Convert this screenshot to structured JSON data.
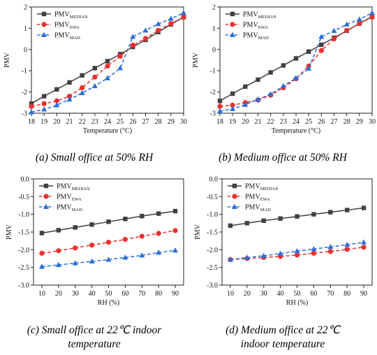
{
  "chart_data": [
    {
      "type": "line",
      "xlabel": "Temperature (°C)",
      "ylabel": "PMV",
      "xlim": [
        18,
        30
      ],
      "ylim": [
        -3,
        2
      ],
      "xticks": [
        18,
        19,
        20,
        21,
        22,
        23,
        24,
        25,
        26,
        27,
        28,
        29,
        30
      ],
      "yticks": [
        -3,
        -2,
        -1,
        0,
        1,
        2
      ],
      "legend": "top-left",
      "x": [
        18,
        19,
        20,
        21,
        22,
        23,
        24,
        25,
        26,
        27,
        28,
        29,
        30
      ],
      "series": [
        {
          "name": "PMV",
          "sub": "MEDIAN",
          "color": "#404040",
          "marker": "square",
          "dash": "solid",
          "values": [
            -2.55,
            -2.2,
            -1.88,
            -1.55,
            -1.22,
            -0.88,
            -0.55,
            -0.22,
            0.12,
            0.45,
            0.82,
            1.18,
            1.52
          ]
        },
        {
          "name": "PMV",
          "sub": "EWA",
          "color": "#e8312f",
          "marker": "circle",
          "dash": "dashed",
          "values": [
            -2.68,
            -2.55,
            -2.42,
            -2.2,
            -1.8,
            -1.3,
            -0.78,
            -0.32,
            0.2,
            0.52,
            0.9,
            1.22,
            1.52
          ]
        },
        {
          "name": "PMV",
          "sub": "MAD",
          "color": "#2a6ed8",
          "marker": "triangle",
          "dash": "dashed",
          "values": [
            -2.95,
            -2.82,
            -2.62,
            -2.35,
            -2.05,
            -1.72,
            -1.35,
            -0.88,
            0.6,
            0.9,
            1.2,
            1.45,
            1.72
          ]
        }
      ]
    },
    {
      "type": "line",
      "xlabel": "Temperature (°C)",
      "ylabel": "PMV",
      "xlim": [
        18,
        30
      ],
      "ylim": [
        -3,
        2
      ],
      "xticks": [
        18,
        19,
        20,
        21,
        22,
        23,
        24,
        25,
        26,
        27,
        28,
        29,
        30
      ],
      "yticks": [
        -3,
        -2,
        -1,
        0,
        1,
        2
      ],
      "legend": "top-left",
      "x": [
        18,
        19,
        20,
        21,
        22,
        23,
        24,
        25,
        26,
        27,
        28,
        29,
        30
      ],
      "series": [
        {
          "name": "PMV",
          "sub": "MEDIAN",
          "color": "#404040",
          "marker": "square",
          "dash": "solid",
          "values": [
            -2.42,
            -2.08,
            -1.75,
            -1.42,
            -1.08,
            -0.75,
            -0.42,
            -0.1,
            0.22,
            0.55,
            0.88,
            1.22,
            1.55
          ]
        },
        {
          "name": "PMV",
          "sub": "EWA",
          "color": "#e8312f",
          "marker": "circle",
          "dash": "dashed",
          "values": [
            -2.68,
            -2.62,
            -2.5,
            -2.38,
            -2.15,
            -1.8,
            -1.38,
            -0.78,
            -0.05,
            0.5,
            0.9,
            1.22,
            1.52
          ]
        },
        {
          "name": "PMV",
          "sub": "MAD",
          "color": "#2a6ed8",
          "marker": "triangle",
          "dash": "dashed",
          "values": [
            -2.9,
            -2.8,
            -2.6,
            -2.35,
            -2.1,
            -1.72,
            -1.35,
            -0.9,
            0.6,
            0.88,
            1.18,
            1.42,
            1.72
          ]
        }
      ]
    },
    {
      "type": "line",
      "xlabel": "RH (%)",
      "ylabel": "PMV",
      "xlim": [
        5,
        95
      ],
      "ylim": [
        -3,
        0
      ],
      "xticks": [
        10,
        20,
        30,
        40,
        50,
        60,
        70,
        80,
        90
      ],
      "yticks": [
        "-3.0",
        "-2.5",
        "-2.0",
        "-1.5",
        "-1.0",
        "-0.5",
        "0.0"
      ],
      "legend": "top-left",
      "x": [
        10,
        20,
        30,
        40,
        50,
        60,
        70,
        80,
        90
      ],
      "series": [
        {
          "name": "PMV",
          "sub": "MEDIAN",
          "color": "#404040",
          "marker": "square",
          "dash": "solid",
          "values": [
            -1.53,
            -1.45,
            -1.37,
            -1.29,
            -1.21,
            -1.13,
            -1.05,
            -0.98,
            -0.91
          ]
        },
        {
          "name": "PMV",
          "sub": "EWA",
          "color": "#e8312f",
          "marker": "circle",
          "dash": "dashed",
          "values": [
            -2.1,
            -2.03,
            -1.95,
            -1.87,
            -1.79,
            -1.71,
            -1.62,
            -1.54,
            -1.46
          ]
        },
        {
          "name": "PMV",
          "sub": "MAD",
          "color": "#2a6ed8",
          "marker": "triangle",
          "dash": "dashed",
          "values": [
            -2.48,
            -2.43,
            -2.38,
            -2.33,
            -2.28,
            -2.22,
            -2.16,
            -2.08,
            -2.02
          ]
        }
      ]
    },
    {
      "type": "line",
      "xlabel": "RH (%)",
      "ylabel": "PMV",
      "xlim": [
        5,
        95
      ],
      "ylim": [
        -3,
        0
      ],
      "xticks": [
        10,
        20,
        30,
        40,
        50,
        60,
        70,
        80,
        90
      ],
      "yticks": [
        "-3.0",
        "-2.5",
        "-2.0",
        "-1.5",
        "-1.0",
        "-0.5",
        "0.0"
      ],
      "legend": "top-left",
      "x": [
        10,
        20,
        30,
        40,
        50,
        60,
        70,
        80,
        90
      ],
      "series": [
        {
          "name": "PMV",
          "sub": "MEDIAN",
          "color": "#404040",
          "marker": "square",
          "dash": "solid",
          "values": [
            -1.32,
            -1.25,
            -1.18,
            -1.12,
            -1.06,
            -1.0,
            -0.94,
            -0.88,
            -0.82
          ]
        },
        {
          "name": "PMV",
          "sub": "EWA",
          "color": "#e8312f",
          "marker": "circle",
          "dash": "dashed",
          "values": [
            -2.28,
            -2.25,
            -2.22,
            -2.19,
            -2.15,
            -2.1,
            -2.05,
            -1.99,
            -1.93
          ]
        },
        {
          "name": "PMV",
          "sub": "MAD",
          "color": "#2a6ed8",
          "marker": "triangle",
          "dash": "dashed",
          "values": [
            -2.28,
            -2.22,
            -2.17,
            -2.11,
            -2.04,
            -1.98,
            -1.92,
            -1.86,
            -1.79
          ]
        }
      ]
    }
  ],
  "captions": [
    {
      "line1": "(a)  Small office at 50% RH",
      "line2": ""
    },
    {
      "line1": "(b)  Medium office at 50% RH",
      "line2": ""
    },
    {
      "line1": "(c)  Small office at 22℃  indoor",
      "line2": "temperature"
    },
    {
      "line1": "(d)  Medium office at 22℃",
      "line2": "indoor temperature"
    }
  ]
}
